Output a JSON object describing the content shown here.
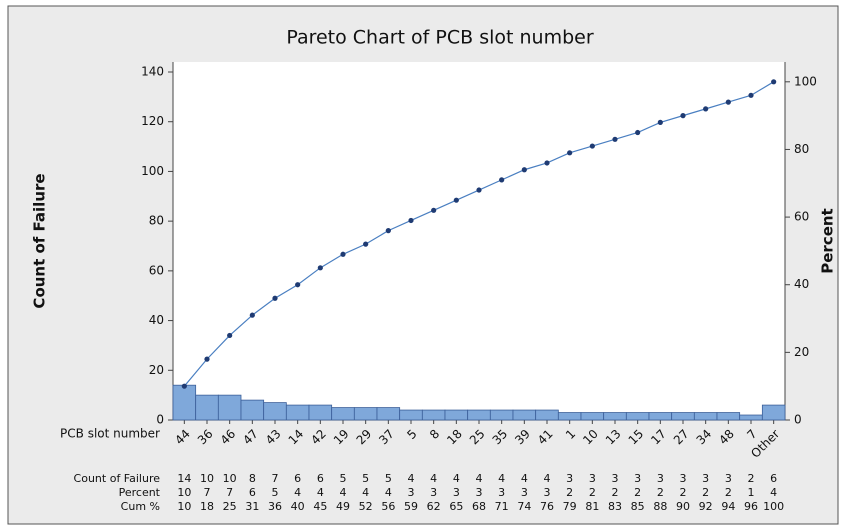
{
  "chart_data": {
    "type": "pareto",
    "title": "Pareto Chart of PCB slot number",
    "xlabel": "PCB slot number",
    "ylabel": "Count of Failure",
    "y2label": "Percent",
    "categories": [
      "44",
      "36",
      "46",
      "47",
      "43",
      "14",
      "42",
      "19",
      "29",
      "37",
      "5",
      "8",
      "18",
      "25",
      "35",
      "39",
      "41",
      "1",
      "10",
      "13",
      "15",
      "17",
      "27",
      "34",
      "48",
      "7",
      "Other"
    ],
    "series": [
      {
        "name": "Count of Failure",
        "type": "bar",
        "color": "#7fa8da",
        "values": [
          14,
          10,
          10,
          8,
          7,
          6,
          6,
          5,
          5,
          5,
          4,
          4,
          4,
          4,
          4,
          4,
          4,
          3,
          3,
          3,
          3,
          3,
          3,
          3,
          3,
          2,
          6
        ]
      },
      {
        "name": "Cum %",
        "type": "line",
        "axis": "y2",
        "color": "#4a7fc1",
        "values": [
          10,
          18,
          25,
          31,
          36,
          40,
          45,
          49,
          52,
          56,
          59,
          62,
          65,
          68,
          71,
          74,
          76,
          79,
          81,
          83,
          85,
          88,
          90,
          92,
          94,
          96,
          100
        ]
      }
    ],
    "percent": {
      "name": "Percent",
      "values": [
        10,
        7,
        7,
        6,
        5,
        4,
        4,
        4,
        4,
        4,
        3,
        3,
        3,
        3,
        3,
        3,
        3,
        2,
        2,
        2,
        2,
        2,
        2,
        2,
        2,
        1,
        4
      ]
    },
    "ylim": [
      0,
      140
    ],
    "yticks": [
      0,
      20,
      40,
      60,
      80,
      100,
      120,
      140
    ],
    "y2lim": [
      0,
      102.9
    ],
    "y2ticks": [
      0,
      20,
      40,
      60,
      80,
      100
    ]
  }
}
